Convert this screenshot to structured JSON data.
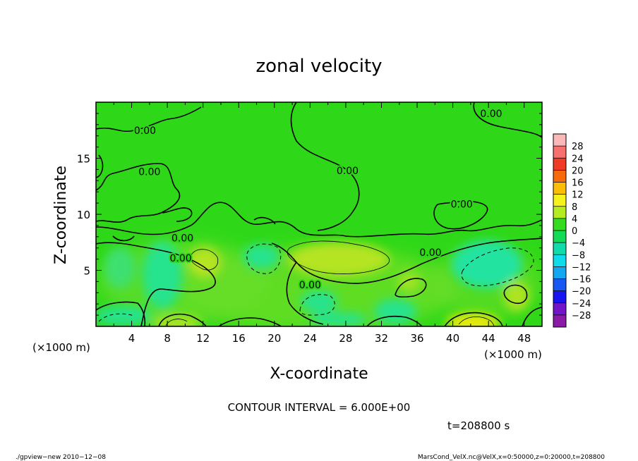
{
  "chart_data": {
    "type": "heatmap",
    "title": "zonal velocity",
    "xlabel": "X-coordinate",
    "ylabel": "Z-coordinate",
    "x_unit_label": "(×1000 m)",
    "y_unit_label": "(×1000 m)",
    "xlim": [
      0,
      50
    ],
    "ylim": [
      0,
      20
    ],
    "x_ticks": [
      "4",
      "8",
      "12",
      "16",
      "20",
      "24",
      "28",
      "32",
      "36",
      "40",
      "44",
      "48"
    ],
    "x_tick_values": [
      4,
      8,
      12,
      16,
      20,
      24,
      28,
      32,
      36,
      40,
      44,
      48
    ],
    "y_ticks": [
      "5",
      "10",
      "15"
    ],
    "y_tick_values": [
      5,
      10,
      15
    ],
    "contour_labels": [
      {
        "text": "0.00",
        "x": 5.5,
        "z": 17.5
      },
      {
        "text": "0.00",
        "x": 6.0,
        "z": 13.8
      },
      {
        "text": "0.00",
        "x": 44.3,
        "z": 19.0
      },
      {
        "text": "0.00",
        "x": 28.2,
        "z": 13.9
      },
      {
        "text": "0.00",
        "x": 41.0,
        "z": 10.9
      },
      {
        "text": "0.00",
        "x": 9.7,
        "z": 7.9
      },
      {
        "text": "0.00",
        "x": 9.5,
        "z": 6.1
      },
      {
        "text": "0.00",
        "x": 37.5,
        "z": 6.6
      },
      {
        "text": "0.00",
        "x": 24.0,
        "z": 3.7
      }
    ],
    "colorbar": {
      "levels": [
        "28",
        "24",
        "20",
        "16",
        "12",
        "8",
        "4",
        "0",
        "−4",
        "−8",
        "−12",
        "−16",
        "−20",
        "−24",
        "−28"
      ],
      "colors": [
        "#fbb8b8",
        "#f5706e",
        "#f03a24",
        "#f66a0b",
        "#fbbd05",
        "#f6f21c",
        "#b4ec20",
        "#33dc1f",
        "#13db55",
        "#10dbab",
        "#0fdcea",
        "#12a8f1",
        "#1758f4",
        "#1713f1",
        "#7215c8",
        "#8b1aa7"
      ]
    },
    "contour_interval": "CONTOUR INTERVAL = 6.000E+00",
    "time_label": "t=208800 s"
  },
  "footer": {
    "left": "./gpview−new  2010−12−08",
    "right": "MarsCond_VelX.nc@VelX,x=0:50000,z=0:20000,t=208800"
  },
  "colors": {
    "background_green": "#2ed818",
    "cyan_region": "#27e38e",
    "yellow_region": "#a8e428",
    "warm_region": "#dcea0e"
  }
}
